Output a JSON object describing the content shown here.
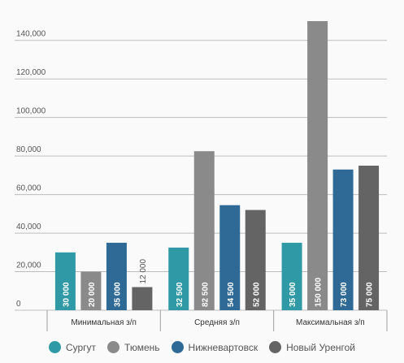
{
  "chart_data": {
    "type": "bar",
    "categories": [
      "Минимальная з/п",
      "Средняя з/п",
      "Максимальная з/п"
    ],
    "series": [
      {
        "name": "Сургут",
        "color": "#2f9aa6",
        "values": [
          30000,
          32500,
          35000
        ],
        "labels": [
          "30 000",
          "32 500",
          "35 000"
        ]
      },
      {
        "name": "Тюмень",
        "color": "#8a8a8a",
        "values": [
          20000,
          82500,
          150000
        ],
        "labels": [
          "20 000",
          "82 500",
          "150 000"
        ]
      },
      {
        "name": "Нижневартовск",
        "color": "#2f6a96",
        "values": [
          35000,
          54500,
          73000
        ],
        "labels": [
          "35 000",
          "54 500",
          "73 000"
        ]
      },
      {
        "name": "Новый Уренгой",
        "color": "#646464",
        "values": [
          12000,
          52000,
          75000
        ],
        "labels": [
          "12 000",
          "52 000",
          "75 000"
        ]
      }
    ],
    "yticks": [
      "0",
      "20,000",
      "40,000",
      "60,000",
      "80,000",
      "100,000",
      "120,000",
      "140,000"
    ],
    "ylim": [
      0,
      150000
    ],
    "grid": true,
    "legend_position": "bottom"
  }
}
